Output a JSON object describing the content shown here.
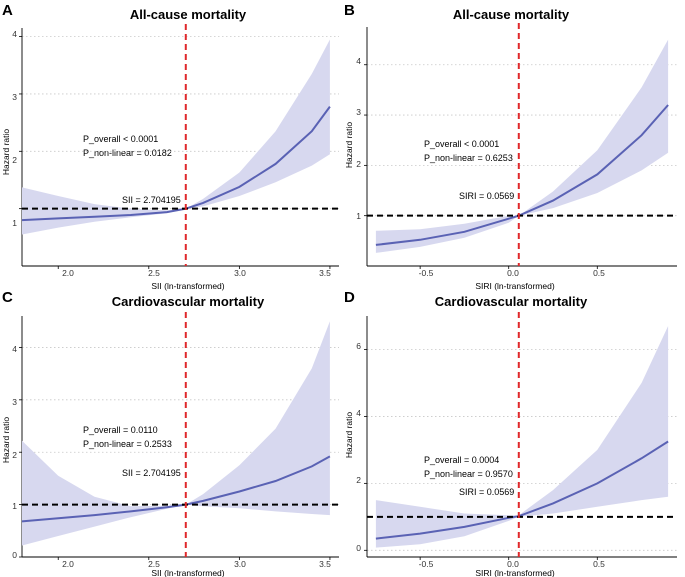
{
  "chart_data": [
    {
      "panel": "A",
      "type": "line",
      "title": "All-cause mortality",
      "xlabel": "SII (ln-transformed)",
      "ylabel": "Hazard ratio",
      "xlim": [
        1.8,
        3.55
      ],
      "ylim": [
        0,
        4.15
      ],
      "xticks": [
        2.0,
        2.5,
        3.0,
        3.5
      ],
      "xtick_labels": [
        "2.0",
        "2.5",
        "3.0",
        "3.5"
      ],
      "yticks": [
        1,
        2,
        3,
        4
      ],
      "ytick_labels": [
        "1",
        "2",
        "3",
        "4"
      ],
      "ytick_axis_labels": [
        "1",
        "2",
        "3",
        "4"
      ],
      "grid": "horizontal-dotted",
      "reference_x": 2.704195,
      "reference_y": 1,
      "x": [
        1.8,
        2.0,
        2.2,
        2.4,
        2.6,
        2.704195,
        2.8,
        3.0,
        3.2,
        3.4,
        3.5
      ],
      "hr": [
        0.8,
        0.83,
        0.86,
        0.89,
        0.94,
        1.0,
        1.1,
        1.38,
        1.78,
        2.35,
        2.78
      ],
      "lower": [
        0.55,
        0.67,
        0.77,
        0.85,
        0.92,
        1.0,
        1.04,
        1.22,
        1.46,
        1.75,
        1.95
      ],
      "upper": [
        1.37,
        1.22,
        1.08,
        1.0,
        0.97,
        1.0,
        1.17,
        1.63,
        2.35,
        3.35,
        3.95
      ],
      "annotations": [
        "P_overall < 0.0001",
        "P_non-linear = 0.0182",
        "SII = 2.704195"
      ]
    },
    {
      "panel": "B",
      "type": "line",
      "title": "All-cause mortality",
      "xlabel": "SIRI (ln-transformed)",
      "ylabel": "Hazard ratio",
      "xlim": [
        -0.8,
        0.95
      ],
      "ylim": [
        0,
        4.75
      ],
      "xticks": [
        -0.5,
        0.0,
        0.5
      ],
      "xtick_labels": [
        "-0.5",
        "0.0",
        "0.5"
      ],
      "yticks": [
        1,
        2,
        3,
        4
      ],
      "ytick_labels": [
        "1",
        "2",
        "3",
        "4"
      ],
      "ytick_axis_labels": [
        "1",
        "2",
        "3",
        "4"
      ],
      "grid": "horizontal-dotted",
      "reference_x": 0.0569,
      "reference_y": 1,
      "x": [
        -0.75,
        -0.5,
        -0.25,
        0.0,
        0.0569,
        0.25,
        0.5,
        0.75,
        0.9
      ],
      "hr": [
        0.42,
        0.52,
        0.68,
        0.94,
        1.0,
        1.3,
        1.82,
        2.6,
        3.2
      ],
      "lower": [
        0.26,
        0.38,
        0.56,
        0.86,
        1.0,
        1.15,
        1.45,
        1.9,
        2.25
      ],
      "upper": [
        0.7,
        0.73,
        0.84,
        1.0,
        1.0,
        1.48,
        2.3,
        3.55,
        4.5
      ],
      "annotations": [
        "P_overall < 0.0001",
        "P_non-linear = 0.6253",
        "SIRI = 0.0569"
      ]
    },
    {
      "panel": "C",
      "type": "line",
      "title": "Cardiovascular mortality",
      "xlabel": "SII (ln-transformed)",
      "ylabel": "Hazard ratio",
      "xlim": [
        1.8,
        3.55
      ],
      "ylim": [
        0,
        4.6
      ],
      "xticks": [
        2.0,
        2.5,
        3.0,
        3.5
      ],
      "xtick_labels": [
        "2.0",
        "2.5",
        "3.0",
        "3.5"
      ],
      "yticks": [
        0,
        1,
        2,
        3,
        4
      ],
      "ytick_labels": [
        "0",
        "1",
        "2",
        "3",
        "4"
      ],
      "ytick_axis_labels": [
        "0",
        "1",
        "2",
        "3",
        "4"
      ],
      "grid": "horizontal-dotted",
      "reference_x": 2.704195,
      "reference_y": 1,
      "x": [
        1.8,
        2.0,
        2.2,
        2.4,
        2.6,
        2.704195,
        2.8,
        3.0,
        3.2,
        3.4,
        3.5
      ],
      "hr": [
        0.68,
        0.74,
        0.8,
        0.87,
        0.95,
        1.0,
        1.07,
        1.25,
        1.45,
        1.73,
        1.92
      ],
      "lower": [
        0.22,
        0.4,
        0.58,
        0.76,
        0.92,
        1.0,
        0.97,
        0.93,
        0.87,
        0.82,
        0.8
      ],
      "upper": [
        2.22,
        1.55,
        1.15,
        0.97,
        0.98,
        1.0,
        1.2,
        1.75,
        2.45,
        3.6,
        4.5
      ],
      "annotations": [
        "P_overall = 0.0110",
        "P_non-linear = 0.2533",
        "SII = 2.704195"
      ]
    },
    {
      "panel": "D",
      "type": "line",
      "title": "Cardiovascular mortality",
      "xlabel": "SIRI (ln-transformed)",
      "ylabel": "Hazard ratio",
      "xlim": [
        -0.8,
        0.95
      ],
      "ylim": [
        -0.2,
        7.0
      ],
      "xticks": [
        -0.5,
        0.0,
        0.5
      ],
      "xtick_labels": [
        "-0.5",
        "0.0",
        "0.5"
      ],
      "yticks": [
        0,
        2,
        4,
        6
      ],
      "ytick_labels": [
        "0",
        "2",
        "4",
        "6"
      ],
      "ytick_axis_labels": [
        "0",
        "2",
        "4",
        "6"
      ],
      "grid": "horizontal-dotted",
      "reference_x": 0.0569,
      "reference_y": 1,
      "x": [
        -0.75,
        -0.5,
        -0.25,
        0.0,
        0.0569,
        0.25,
        0.5,
        0.75,
        0.9
      ],
      "hr": [
        0.35,
        0.5,
        0.7,
        0.97,
        1.02,
        1.4,
        2.0,
        2.75,
        3.25
      ],
      "lower": [
        0.08,
        0.18,
        0.42,
        0.88,
        1.0,
        1.1,
        1.3,
        1.5,
        1.6
      ],
      "upper": [
        1.5,
        1.3,
        1.1,
        1.05,
        1.05,
        1.8,
        3.0,
        5.0,
        6.7
      ],
      "annotations": [
        "P_overall = 0.0004",
        "P_non-linear = 0.9570",
        "SIRI = 0.0569"
      ]
    }
  ],
  "colors": {
    "curve": "#5a62b4",
    "band": "#d7d8ef",
    "reference_vertical": "#e0282b",
    "reference_horizontal": "#000000"
  }
}
